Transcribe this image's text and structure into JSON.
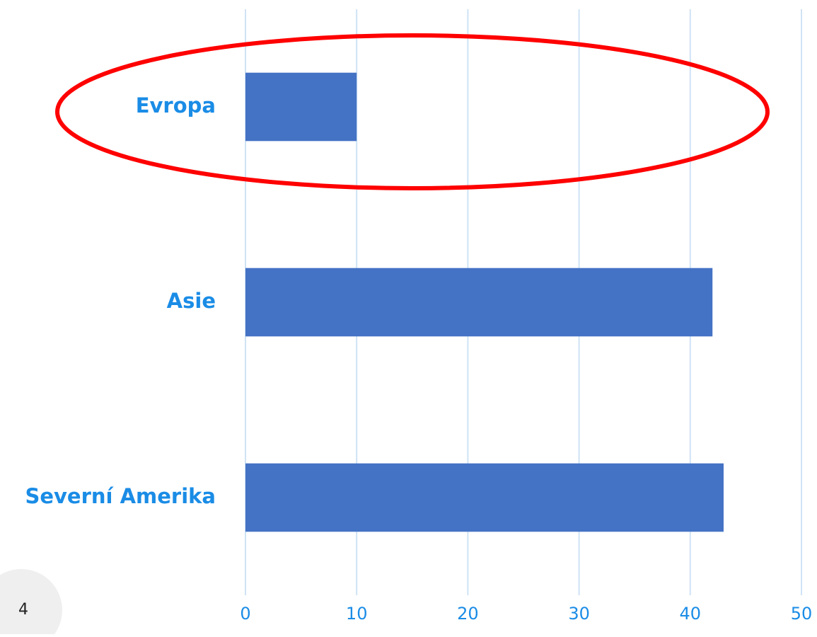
{
  "chart_data": {
    "type": "barh",
    "categories": [
      "Evropa",
      "Asie",
      "Severní Amerika"
    ],
    "values": [
      10,
      42,
      43
    ],
    "color": "#4472c4",
    "xlim": [
      0,
      50
    ],
    "xticks": [
      0,
      10,
      20,
      30,
      40,
      50
    ],
    "grid": true
  },
  "page_number": "4"
}
